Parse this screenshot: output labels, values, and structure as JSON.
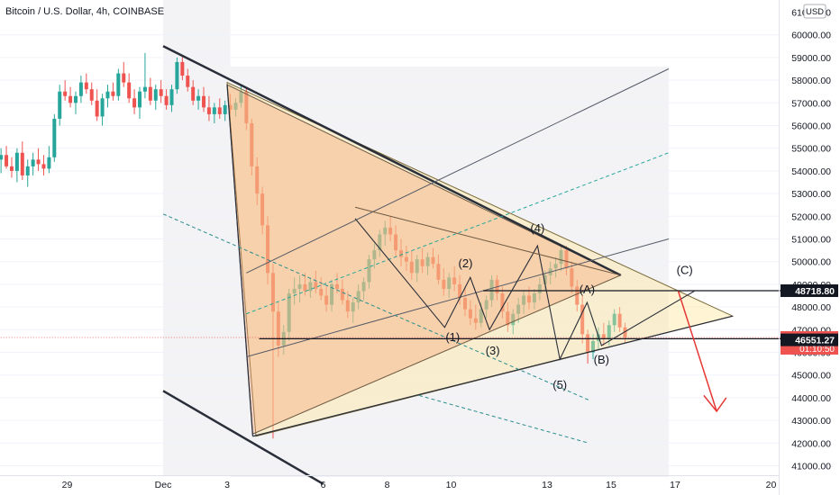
{
  "header": {
    "title": "Bitcoin / U.S. Dollar, 4h, COINBASE",
    "currency": "USD"
  },
  "chart_data": {
    "type": "candlestick",
    "title": "Bitcoin / U.S. Dollar, 4h, COINBASE",
    "ylim": [
      40500,
      61000
    ],
    "y_ticks": [
      "41000.00",
      "42000.00",
      "43000.00",
      "44000.00",
      "45000.00",
      "46000.00",
      "47000.00",
      "48000.00",
      "49000.00",
      "50000.00",
      "51000.00",
      "52000.00",
      "53000.00",
      "54000.00",
      "55000.00",
      "56000.00",
      "57000.00",
      "58000.00",
      "59000.00",
      "60000.00"
    ],
    "y_ticks_top_partial": "61000.00",
    "x_ticks": [
      {
        "label": "29",
        "day": -2
      },
      {
        "label": "Dec",
        "day": 1
      },
      {
        "label": "3",
        "day": 3
      },
      {
        "label": "6",
        "day": 6
      },
      {
        "label": "8",
        "day": 8
      },
      {
        "label": "10",
        "day": 10
      },
      {
        "label": "13",
        "day": 13
      },
      {
        "label": "15",
        "day": 15
      },
      {
        "label": "17",
        "day": 17
      },
      {
        "label": "20",
        "day": 20
      }
    ],
    "price_labels": [
      {
        "value": "48718.80",
        "price": 48718.8,
        "style": "dark"
      },
      {
        "value": "46655.08",
        "price": 46655.08,
        "style": "red",
        "sub": "01:10:50"
      },
      {
        "value": "46551.27",
        "price": 46551.27,
        "style": "dark"
      }
    ],
    "wave_labels": [
      {
        "text": "(1)",
        "day": 10.05,
        "price": 46500
      },
      {
        "text": "(2)",
        "day": 10.45,
        "price": 49750
      },
      {
        "text": "(3)",
        "day": 11.3,
        "price": 45900
      },
      {
        "text": "(4)",
        "day": 12.7,
        "price": 51300
      },
      {
        "text": "(5)",
        "day": 13.4,
        "price": 44400
      },
      {
        "text": "(A)",
        "day": 14.25,
        "price": 48600
      },
      {
        "text": "(B)",
        "day": 14.7,
        "price": 45500
      },
      {
        "text": "(C)",
        "day": 17.3,
        "price": 49450
      }
    ],
    "candles": [
      {
        "o": 54600,
        "h": 55500,
        "l": 54000,
        "c": 54900
      },
      {
        "o": 54900,
        "h": 55200,
        "l": 54300,
        "c": 54500
      },
      {
        "o": 54500,
        "h": 55000,
        "l": 53900,
        "c": 54700
      },
      {
        "o": 54700,
        "h": 55100,
        "l": 54100,
        "c": 54200
      },
      {
        "o": 54200,
        "h": 54600,
        "l": 53700,
        "c": 54000
      },
      {
        "o": 54000,
        "h": 55000,
        "l": 53500,
        "c": 54800
      },
      {
        "o": 54800,
        "h": 55300,
        "l": 53600,
        "c": 53800
      },
      {
        "o": 53800,
        "h": 54500,
        "l": 53300,
        "c": 54200
      },
      {
        "o": 54200,
        "h": 54800,
        "l": 53800,
        "c": 54500
      },
      {
        "o": 54500,
        "h": 55000,
        "l": 54000,
        "c": 54300
      },
      {
        "o": 54300,
        "h": 54700,
        "l": 53800,
        "c": 54100
      },
      {
        "o": 54100,
        "h": 55100,
        "l": 53900,
        "c": 54600
      },
      {
        "o": 54600,
        "h": 56500,
        "l": 54400,
        "c": 56300
      },
      {
        "o": 56300,
        "h": 57800,
        "l": 56000,
        "c": 57500
      },
      {
        "o": 57500,
        "h": 58000,
        "l": 57100,
        "c": 57300
      },
      {
        "o": 57300,
        "h": 57700,
        "l": 56800,
        "c": 57000
      },
      {
        "o": 57000,
        "h": 57500,
        "l": 56500,
        "c": 57300
      },
      {
        "o": 57300,
        "h": 58200,
        "l": 57000,
        "c": 57900
      },
      {
        "o": 57900,
        "h": 58300,
        "l": 57400,
        "c": 57600
      },
      {
        "o": 57600,
        "h": 57900,
        "l": 56900,
        "c": 57100
      },
      {
        "o": 57100,
        "h": 57600,
        "l": 56200,
        "c": 56400
      },
      {
        "o": 56400,
        "h": 57400,
        "l": 56000,
        "c": 57200
      },
      {
        "o": 57200,
        "h": 57800,
        "l": 56800,
        "c": 57500
      },
      {
        "o": 57500,
        "h": 57900,
        "l": 57100,
        "c": 57300
      },
      {
        "o": 57300,
        "h": 58500,
        "l": 57100,
        "c": 58300
      },
      {
        "o": 58300,
        "h": 58800,
        "l": 57700,
        "c": 57900
      },
      {
        "o": 57900,
        "h": 58300,
        "l": 57000,
        "c": 57200
      },
      {
        "o": 57200,
        "h": 57600,
        "l": 56500,
        "c": 56800
      },
      {
        "o": 56800,
        "h": 57700,
        "l": 56300,
        "c": 57500
      },
      {
        "o": 57500,
        "h": 59200,
        "l": 57200,
        "c": 57700
      },
      {
        "o": 57700,
        "h": 58100,
        "l": 56900,
        "c": 57100
      },
      {
        "o": 57100,
        "h": 57800,
        "l": 56700,
        "c": 57600
      },
      {
        "o": 57600,
        "h": 58000,
        "l": 57000,
        "c": 57300
      },
      {
        "o": 57300,
        "h": 57600,
        "l": 56700,
        "c": 56900
      },
      {
        "o": 56900,
        "h": 57800,
        "l": 56600,
        "c": 57600
      },
      {
        "o": 57600,
        "h": 59000,
        "l": 57400,
        "c": 58800
      },
      {
        "o": 58800,
        "h": 59100,
        "l": 58000,
        "c": 58200
      },
      {
        "o": 58200,
        "h": 58500,
        "l": 57500,
        "c": 57700
      },
      {
        "o": 57700,
        "h": 58000,
        "l": 56900,
        "c": 57100
      },
      {
        "o": 57100,
        "h": 57600,
        "l": 56700,
        "c": 57300
      },
      {
        "o": 57300,
        "h": 57700,
        "l": 56600,
        "c": 56800
      },
      {
        "o": 56800,
        "h": 57300,
        "l": 56200,
        "c": 56500
      },
      {
        "o": 56500,
        "h": 57000,
        "l": 56100,
        "c": 56800
      },
      {
        "o": 56800,
        "h": 57200,
        "l": 56300,
        "c": 56500
      },
      {
        "o": 56500,
        "h": 57100,
        "l": 56200,
        "c": 56900
      },
      {
        "o": 56900,
        "h": 57400,
        "l": 56500,
        "c": 56700
      },
      {
        "o": 56700,
        "h": 57200,
        "l": 56400,
        "c": 57000
      },
      {
        "o": 57000,
        "h": 57800,
        "l": 56800,
        "c": 57500
      },
      {
        "o": 57500,
        "h": 57700,
        "l": 55800,
        "c": 56100
      },
      {
        "o": 56100,
        "h": 56300,
        "l": 53800,
        "c": 54200
      },
      {
        "o": 54200,
        "h": 54600,
        "l": 52500,
        "c": 53000
      },
      {
        "o": 53000,
        "h": 53300,
        "l": 51200,
        "c": 51600
      },
      {
        "o": 51600,
        "h": 52000,
        "l": 49000,
        "c": 49500
      },
      {
        "o": 49500,
        "h": 49900,
        "l": 42200,
        "c": 47800
      },
      {
        "o": 47800,
        "h": 48200,
        "l": 45800,
        "c": 46300
      },
      {
        "o": 46300,
        "h": 47200,
        "l": 45900,
        "c": 46900
      },
      {
        "o": 46900,
        "h": 48800,
        "l": 46500,
        "c": 48600
      },
      {
        "o": 48600,
        "h": 49300,
        "l": 48100,
        "c": 48800
      },
      {
        "o": 48800,
        "h": 49400,
        "l": 48200,
        "c": 49000
      },
      {
        "o": 49000,
        "h": 49500,
        "l": 48500,
        "c": 48700
      },
      {
        "o": 48700,
        "h": 49300,
        "l": 48400,
        "c": 49100
      },
      {
        "o": 49100,
        "h": 49600,
        "l": 48600,
        "c": 48800
      },
      {
        "o": 48800,
        "h": 49300,
        "l": 48300,
        "c": 48500
      },
      {
        "o": 48500,
        "h": 48900,
        "l": 47800,
        "c": 48100
      },
      {
        "o": 48100,
        "h": 49200,
        "l": 47800,
        "c": 49000
      },
      {
        "o": 49000,
        "h": 49500,
        "l": 48600,
        "c": 48800
      },
      {
        "o": 48800,
        "h": 49200,
        "l": 48100,
        "c": 48300
      },
      {
        "o": 48300,
        "h": 48700,
        "l": 47500,
        "c": 47800
      },
      {
        "o": 47800,
        "h": 48400,
        "l": 47300,
        "c": 48200
      },
      {
        "o": 48200,
        "h": 49000,
        "l": 47900,
        "c": 48700
      },
      {
        "o": 48700,
        "h": 49300,
        "l": 48300,
        "c": 49100
      },
      {
        "o": 49100,
        "h": 50300,
        "l": 48800,
        "c": 50100
      },
      {
        "o": 50100,
        "h": 50800,
        "l": 49700,
        "c": 50500
      },
      {
        "o": 50500,
        "h": 51400,
        "l": 50200,
        "c": 51200
      },
      {
        "o": 51200,
        "h": 51800,
        "l": 50700,
        "c": 51500
      },
      {
        "o": 51500,
        "h": 52000,
        "l": 50900,
        "c": 51200
      },
      {
        "o": 51200,
        "h": 51600,
        "l": 50200,
        "c": 50500
      },
      {
        "o": 50500,
        "h": 51000,
        "l": 49800,
        "c": 50200
      },
      {
        "o": 50200,
        "h": 50700,
        "l": 49600,
        "c": 50000
      },
      {
        "o": 50000,
        "h": 50500,
        "l": 49200,
        "c": 49500
      },
      {
        "o": 49500,
        "h": 50300,
        "l": 49100,
        "c": 50100
      },
      {
        "o": 50100,
        "h": 50600,
        "l": 49500,
        "c": 49800
      },
      {
        "o": 49800,
        "h": 50400,
        "l": 49400,
        "c": 50200
      },
      {
        "o": 50200,
        "h": 50600,
        "l": 49700,
        "c": 49900
      },
      {
        "o": 49900,
        "h": 50300,
        "l": 49000,
        "c": 49200
      },
      {
        "o": 49200,
        "h": 49700,
        "l": 48500,
        "c": 48800
      },
      {
        "o": 48800,
        "h": 49500,
        "l": 48400,
        "c": 49300
      },
      {
        "o": 49300,
        "h": 49800,
        "l": 48700,
        "c": 49000
      },
      {
        "o": 49000,
        "h": 49400,
        "l": 48100,
        "c": 48400
      },
      {
        "o": 48400,
        "h": 48900,
        "l": 47600,
        "c": 47900
      },
      {
        "o": 47900,
        "h": 48300,
        "l": 47200,
        "c": 47500
      },
      {
        "o": 47500,
        "h": 48100,
        "l": 47000,
        "c": 47300
      },
      {
        "o": 47300,
        "h": 48200,
        "l": 47100,
        "c": 47900
      },
      {
        "o": 47900,
        "h": 48500,
        "l": 47500,
        "c": 48300
      },
      {
        "o": 48300,
        "h": 49400,
        "l": 48000,
        "c": 49200
      },
      {
        "o": 49200,
        "h": 49400,
        "l": 48300,
        "c": 48600
      },
      {
        "o": 48600,
        "h": 48900,
        "l": 47500,
        "c": 47800
      },
      {
        "o": 47800,
        "h": 48200,
        "l": 46900,
        "c": 47200
      },
      {
        "o": 47200,
        "h": 47900,
        "l": 46800,
        "c": 47700
      },
      {
        "o": 47700,
        "h": 48400,
        "l": 47300,
        "c": 48100
      },
      {
        "o": 48100,
        "h": 48700,
        "l": 47700,
        "c": 48500
      },
      {
        "o": 48500,
        "h": 48900,
        "l": 47900,
        "c": 48200
      },
      {
        "o": 48200,
        "h": 48800,
        "l": 47900,
        "c": 48600
      },
      {
        "o": 48600,
        "h": 49300,
        "l": 48300,
        "c": 49000
      },
      {
        "o": 49000,
        "h": 49600,
        "l": 48700,
        "c": 49400
      },
      {
        "o": 49400,
        "h": 50000,
        "l": 49000,
        "c": 49700
      },
      {
        "o": 49700,
        "h": 50200,
        "l": 49300,
        "c": 49900
      },
      {
        "o": 49900,
        "h": 50700,
        "l": 49600,
        "c": 50500
      },
      {
        "o": 50500,
        "h": 50700,
        "l": 49400,
        "c": 49700
      },
      {
        "o": 49700,
        "h": 50000,
        "l": 48600,
        "c": 48900
      },
      {
        "o": 48900,
        "h": 49200,
        "l": 47800,
        "c": 48100
      },
      {
        "o": 48100,
        "h": 48500,
        "l": 46400,
        "c": 46800
      },
      {
        "o": 46800,
        "h": 47000,
        "l": 45500,
        "c": 46000
      },
      {
        "o": 46000,
        "h": 46800,
        "l": 45700,
        "c": 46500
      },
      {
        "o": 46500,
        "h": 47100,
        "l": 46100,
        "c": 46800
      },
      {
        "o": 46800,
        "h": 47300,
        "l": 46300,
        "c": 46600
      },
      {
        "o": 46600,
        "h": 47400,
        "l": 46300,
        "c": 47200
      },
      {
        "o": 47200,
        "h": 47900,
        "l": 46900,
        "c": 47700
      },
      {
        "o": 47700,
        "h": 48000,
        "l": 46900,
        "c": 47100
      },
      {
        "o": 47100,
        "h": 47300,
        "l": 46400,
        "c": 46655
      }
    ]
  }
}
